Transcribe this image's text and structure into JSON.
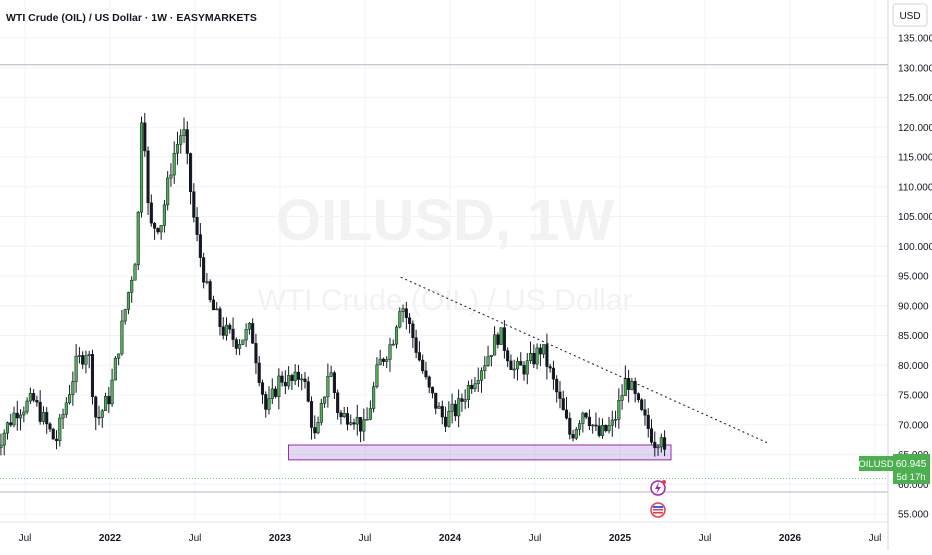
{
  "chart_data": {
    "type": "candlestick",
    "title": "WTI Crude (OIL) / US Dollar · 1W · EASYMARKETS",
    "watermark": {
      "main": "OILUSD, 1W",
      "sub": "WTI Crude (OIL) / US Dollar"
    },
    "currency_label": "USD",
    "y_ticks": [
      "135.000",
      "130.000",
      "125.000",
      "120.000",
      "115.000",
      "110.000",
      "105.000",
      "100.000",
      "95.000",
      "90.000",
      "85.000",
      "80.000",
      "75.000",
      "70.000",
      "65.000",
      "60.000",
      "55.000"
    ],
    "x_ticks": [
      {
        "label": "Jul",
        "t": 2021.5
      },
      {
        "label": "2022",
        "t": 2022.0
      },
      {
        "label": "Jul",
        "t": 2022.5
      },
      {
        "label": "2023",
        "t": 2023.0
      },
      {
        "label": "Jul",
        "t": 2023.5
      },
      {
        "label": "2024",
        "t": 2024.0
      },
      {
        "label": "Jul",
        "t": 2024.5
      },
      {
        "label": "2025",
        "t": 2025.0
      },
      {
        "label": "Jul",
        "t": 2025.5
      },
      {
        "label": "2026",
        "t": 2026.0
      },
      {
        "label": "Jul",
        "t": 2026.5
      }
    ],
    "ylim": [
      52.5,
      137.5
    ],
    "xlim": [
      2021.32,
      2026.48
    ],
    "grid": true,
    "price_label": {
      "symbol": "OILUSD",
      "price": "60.945",
      "countdown": "5d 17h"
    },
    "anchors": [
      {
        "t": 2021.32,
        "v": 66
      },
      {
        "t": 2021.45,
        "v": 72.5
      },
      {
        "t": 2021.55,
        "v": 74
      },
      {
        "t": 2021.68,
        "v": 67
      },
      {
        "t": 2021.8,
        "v": 80
      },
      {
        "t": 2021.87,
        "v": 83
      },
      {
        "t": 2021.92,
        "v": 70.5
      },
      {
        "t": 2022.0,
        "v": 75
      },
      {
        "t": 2022.08,
        "v": 88
      },
      {
        "t": 2022.16,
        "v": 100
      },
      {
        "t": 2022.19,
        "v": 126
      },
      {
        "t": 2022.23,
        "v": 103
      },
      {
        "t": 2022.3,
        "v": 104
      },
      {
        "t": 2022.37,
        "v": 115
      },
      {
        "t": 2022.43,
        "v": 120
      },
      {
        "t": 2022.5,
        "v": 103
      },
      {
        "t": 2022.58,
        "v": 91
      },
      {
        "t": 2022.66,
        "v": 86
      },
      {
        "t": 2022.75,
        "v": 84
      },
      {
        "t": 2022.83,
        "v": 86
      },
      {
        "t": 2022.92,
        "v": 72
      },
      {
        "t": 2023.0,
        "v": 78
      },
      {
        "t": 2023.08,
        "v": 77
      },
      {
        "t": 2023.13,
        "v": 79
      },
      {
        "t": 2023.21,
        "v": 67
      },
      {
        "t": 2023.29,
        "v": 80
      },
      {
        "t": 2023.35,
        "v": 71
      },
      {
        "t": 2023.42,
        "v": 72
      },
      {
        "t": 2023.5,
        "v": 69
      },
      {
        "t": 2023.58,
        "v": 80
      },
      {
        "t": 2023.66,
        "v": 84
      },
      {
        "t": 2023.71,
        "v": 91
      },
      {
        "t": 2023.79,
        "v": 84
      },
      {
        "t": 2023.87,
        "v": 76
      },
      {
        "t": 2023.96,
        "v": 71
      },
      {
        "t": 2024.04,
        "v": 72.5
      },
      {
        "t": 2024.12,
        "v": 77
      },
      {
        "t": 2024.21,
        "v": 81
      },
      {
        "t": 2024.29,
        "v": 85.5
      },
      {
        "t": 2024.38,
        "v": 79
      },
      {
        "t": 2024.46,
        "v": 80
      },
      {
        "t": 2024.54,
        "v": 83
      },
      {
        "t": 2024.62,
        "v": 76
      },
      {
        "t": 2024.71,
        "v": 68
      },
      {
        "t": 2024.79,
        "v": 73
      },
      {
        "t": 2024.87,
        "v": 68
      },
      {
        "t": 2024.96,
        "v": 70
      },
      {
        "t": 2025.04,
        "v": 78
      },
      {
        "t": 2025.12,
        "v": 72
      },
      {
        "t": 2025.21,
        "v": 67
      },
      {
        "t": 2025.25,
        "v": 69.5
      },
      {
        "t": 2025.27,
        "v": 61.5
      },
      {
        "t": 2025.28,
        "v": 60.9
      }
    ],
    "support_zone": {
      "t0": 2023.05,
      "t1": 2025.3,
      "low": 64.1,
      "high": 66.6
    },
    "trendline": {
      "t0": 2023.71,
      "v0": 94.8,
      "t1": 2025.88,
      "v1": 66.8
    },
    "overlays": {
      "high_line": 130.5,
      "low_line": 58.7,
      "current_line": 60.945
    }
  }
}
